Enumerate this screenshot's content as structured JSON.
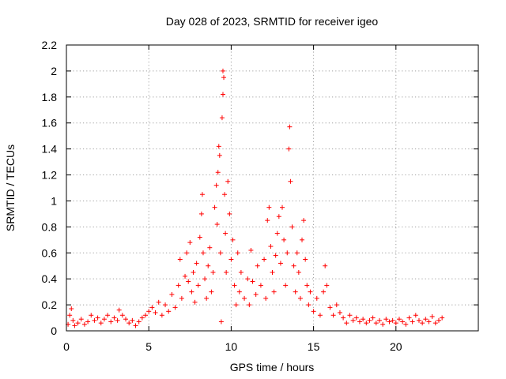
{
  "chart_data": {
    "type": "scatter",
    "title": "Day 028 of 2023, SRMTID for receiver igeo",
    "xlabel": "GPS time / hours",
    "ylabel": "SRMTID / TECUs",
    "xlim": [
      0,
      25
    ],
    "ylim": [
      0,
      2.2
    ],
    "xticks": [
      "0",
      "5",
      "10",
      "15",
      "20"
    ],
    "yticks": [
      "0",
      "0.2",
      "0.4",
      "0.6",
      "0.8",
      "1",
      "1.2",
      "1.4",
      "1.6",
      "1.8",
      "2",
      "2.2"
    ],
    "grid": true,
    "marker": "+",
    "color": "#ff0000",
    "series": [
      {
        "name": "SRMTID",
        "points": [
          [
            0.1,
            0.05
          ],
          [
            0.2,
            0.12
          ],
          [
            0.3,
            0.17
          ],
          [
            0.4,
            0.08
          ],
          [
            0.5,
            0.04
          ],
          [
            0.7,
            0.06
          ],
          [
            0.9,
            0.09
          ],
          [
            1.1,
            0.05
          ],
          [
            1.3,
            0.07
          ],
          [
            1.5,
            0.12
          ],
          [
            1.7,
            0.08
          ],
          [
            1.9,
            0.1
          ],
          [
            2.1,
            0.06
          ],
          [
            2.3,
            0.09
          ],
          [
            2.5,
            0.12
          ],
          [
            2.7,
            0.07
          ],
          [
            2.9,
            0.1
          ],
          [
            3.1,
            0.08
          ],
          [
            3.2,
            0.16
          ],
          [
            3.4,
            0.12
          ],
          [
            3.6,
            0.09
          ],
          [
            3.8,
            0.06
          ],
          [
            4.0,
            0.08
          ],
          [
            4.2,
            0.04
          ],
          [
            4.4,
            0.07
          ],
          [
            4.6,
            0.1
          ],
          [
            4.8,
            0.12
          ],
          [
            5.0,
            0.15
          ],
          [
            5.2,
            0.18
          ],
          [
            5.4,
            0.14
          ],
          [
            5.6,
            0.22
          ],
          [
            5.8,
            0.12
          ],
          [
            6.0,
            0.2
          ],
          [
            6.2,
            0.15
          ],
          [
            6.4,
            0.28
          ],
          [
            6.6,
            0.18
          ],
          [
            6.8,
            0.35
          ],
          [
            6.9,
            0.55
          ],
          [
            7.0,
            0.25
          ],
          [
            7.2,
            0.42
          ],
          [
            7.3,
            0.6
          ],
          [
            7.4,
            0.38
          ],
          [
            7.5,
            0.68
          ],
          [
            7.6,
            0.3
          ],
          [
            7.7,
            0.45
          ],
          [
            7.8,
            0.22
          ],
          [
            7.9,
            0.52
          ],
          [
            8.0,
            0.35
          ],
          [
            8.1,
            0.72
          ],
          [
            8.2,
            0.9
          ],
          [
            8.25,
            1.05
          ],
          [
            8.3,
            0.6
          ],
          [
            8.4,
            0.4
          ],
          [
            8.5,
            0.25
          ],
          [
            8.6,
            0.5
          ],
          [
            8.7,
            0.64
          ],
          [
            8.8,
            0.3
          ],
          [
            8.9,
            0.45
          ],
          [
            9.0,
            0.95
          ],
          [
            9.1,
            1.12
          ],
          [
            9.15,
            0.82
          ],
          [
            9.2,
            1.22
          ],
          [
            9.25,
            1.42
          ],
          [
            9.3,
            1.35
          ],
          [
            9.35,
            0.6
          ],
          [
            9.4,
            0.07
          ],
          [
            9.45,
            1.64
          ],
          [
            9.5,
            1.82
          ],
          [
            9.5,
            2.0
          ],
          [
            9.55,
            1.95
          ],
          [
            9.6,
            1.05
          ],
          [
            9.65,
            0.75
          ],
          [
            9.7,
            0.45
          ],
          [
            9.8,
            1.15
          ],
          [
            9.9,
            0.9
          ],
          [
            10.0,
            0.55
          ],
          [
            10.1,
            0.7
          ],
          [
            10.2,
            0.35
          ],
          [
            10.3,
            0.2
          ],
          [
            10.4,
            0.6
          ],
          [
            10.5,
            0.3
          ],
          [
            10.6,
            0.45
          ],
          [
            10.8,
            0.25
          ],
          [
            11.0,
            0.4
          ],
          [
            11.1,
            0.2
          ],
          [
            11.2,
            0.62
          ],
          [
            11.3,
            0.38
          ],
          [
            11.5,
            0.28
          ],
          [
            11.6,
            0.5
          ],
          [
            11.8,
            0.35
          ],
          [
            12.0,
            0.55
          ],
          [
            12.1,
            0.25
          ],
          [
            12.2,
            0.85
          ],
          [
            12.3,
            0.95
          ],
          [
            12.4,
            0.65
          ],
          [
            12.5,
            0.45
          ],
          [
            12.6,
            0.3
          ],
          [
            12.7,
            0.58
          ],
          [
            12.8,
            0.75
          ],
          [
            12.9,
            0.88
          ],
          [
            13.0,
            0.52
          ],
          [
            13.1,
            0.95
          ],
          [
            13.2,
            0.7
          ],
          [
            13.3,
            0.35
          ],
          [
            13.4,
            0.6
          ],
          [
            13.5,
            1.4
          ],
          [
            13.55,
            1.57
          ],
          [
            13.6,
            1.15
          ],
          [
            13.7,
            0.8
          ],
          [
            13.8,
            0.5
          ],
          [
            13.9,
            0.3
          ],
          [
            14.0,
            0.6
          ],
          [
            14.1,
            0.45
          ],
          [
            14.2,
            0.25
          ],
          [
            14.3,
            0.7
          ],
          [
            14.4,
            0.85
          ],
          [
            14.5,
            0.55
          ],
          [
            14.6,
            0.35
          ],
          [
            14.7,
            0.2
          ],
          [
            14.8,
            0.3
          ],
          [
            15.0,
            0.15
          ],
          [
            15.2,
            0.25
          ],
          [
            15.4,
            0.12
          ],
          [
            15.6,
            0.3
          ],
          [
            15.7,
            0.5
          ],
          [
            15.8,
            0.35
          ],
          [
            16.0,
            0.18
          ],
          [
            16.2,
            0.12
          ],
          [
            16.4,
            0.2
          ],
          [
            16.6,
            0.14
          ],
          [
            16.8,
            0.1
          ],
          [
            17.0,
            0.06
          ],
          [
            17.2,
            0.12
          ],
          [
            17.4,
            0.08
          ],
          [
            17.6,
            0.1
          ],
          [
            17.8,
            0.07
          ],
          [
            18.0,
            0.09
          ],
          [
            18.2,
            0.06
          ],
          [
            18.4,
            0.08
          ],
          [
            18.6,
            0.1
          ],
          [
            18.8,
            0.06
          ],
          [
            19.0,
            0.08
          ],
          [
            19.2,
            0.05
          ],
          [
            19.4,
            0.09
          ],
          [
            19.6,
            0.07
          ],
          [
            19.8,
            0.08
          ],
          [
            20.0,
            0.06
          ],
          [
            20.2,
            0.09
          ],
          [
            20.4,
            0.07
          ],
          [
            20.6,
            0.05
          ],
          [
            20.8,
            0.1
          ],
          [
            21.0,
            0.07
          ],
          [
            21.2,
            0.12
          ],
          [
            21.4,
            0.08
          ],
          [
            21.6,
            0.06
          ],
          [
            21.8,
            0.09
          ],
          [
            22.0,
            0.07
          ],
          [
            22.2,
            0.11
          ],
          [
            22.4,
            0.06
          ],
          [
            22.6,
            0.08
          ],
          [
            22.8,
            0.1
          ]
        ]
      }
    ]
  }
}
